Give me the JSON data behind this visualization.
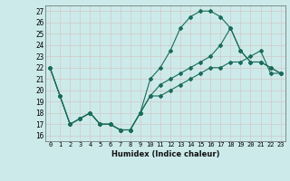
{
  "xlabel": "Humidex (Indice chaleur)",
  "bg_color": "#cceaea",
  "grid_color": "#b8d8d8",
  "line_color": "#1a6b5a",
  "xlim": [
    -0.5,
    23.5
  ],
  "ylim": [
    15.5,
    27.5
  ],
  "yticks": [
    16,
    17,
    18,
    19,
    20,
    21,
    22,
    23,
    24,
    25,
    26,
    27
  ],
  "xticks": [
    0,
    1,
    2,
    3,
    4,
    5,
    6,
    7,
    8,
    9,
    10,
    11,
    12,
    13,
    14,
    15,
    16,
    17,
    18,
    19,
    20,
    21,
    22,
    23
  ],
  "lines": [
    {
      "x": [
        0,
        1,
        2,
        3,
        4,
        5,
        6,
        7,
        8,
        9,
        10,
        11,
        12,
        13,
        14,
        15,
        16,
        17,
        18,
        19,
        20,
        21,
        22,
        23
      ],
      "y": [
        22,
        19.5,
        17,
        17.5,
        18,
        17,
        17,
        16.5,
        16.5,
        18,
        21,
        22,
        23.5,
        25.5,
        26.5,
        27,
        27,
        26.5,
        25.5,
        23.5,
        22.5,
        22.5,
        22,
        21.5
      ]
    },
    {
      "x": [
        0,
        1,
        2,
        3,
        4,
        5,
        6,
        7,
        8,
        9,
        10,
        11,
        12,
        13,
        14,
        15,
        16,
        17,
        18,
        19,
        20,
        21,
        22,
        23
      ],
      "y": [
        22,
        19.5,
        17,
        17.5,
        18,
        17,
        17,
        16.5,
        16.5,
        18,
        19.5,
        20.5,
        21,
        21.5,
        22,
        22.5,
        23,
        24,
        25.5,
        23.5,
        22.5,
        22.5,
        22,
        21.5
      ]
    },
    {
      "x": [
        0,
        1,
        2,
        3,
        4,
        5,
        6,
        7,
        8,
        9,
        10,
        11,
        12,
        13,
        14,
        15,
        16,
        17,
        18,
        19,
        20,
        21,
        22,
        23
      ],
      "y": [
        22,
        19.5,
        17,
        17.5,
        18,
        17,
        17,
        16.5,
        16.5,
        18,
        19.5,
        19.5,
        20,
        20.5,
        21,
        21.5,
        22,
        22,
        22.5,
        22.5,
        23,
        23.5,
        21.5,
        21.5
      ]
    }
  ]
}
